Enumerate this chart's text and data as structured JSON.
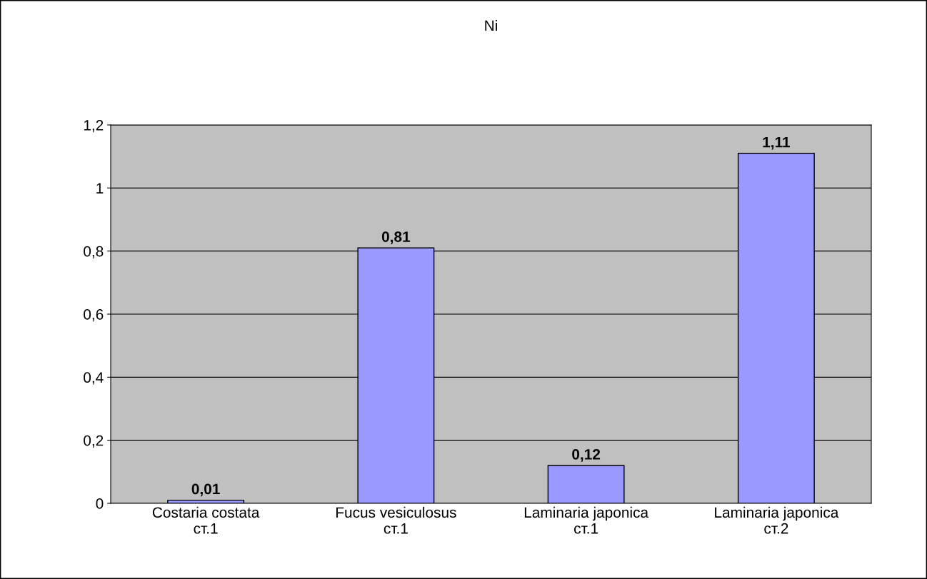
{
  "chart_data": {
    "type": "bar",
    "title": "Ni",
    "categories": [
      "Costaria costata\nст.1",
      "Fucus vesiculosus\nст.1",
      "Laminaria japonica\nст.1",
      "Laminaria japonica\nст.2"
    ],
    "values": [
      0.01,
      0.81,
      0.12,
      1.11
    ],
    "value_labels": [
      "0,01",
      "0,81",
      "0,12",
      "1,11"
    ],
    "color": "#9999ff",
    "ylim": [
      0,
      1.2
    ],
    "yticks": [
      0,
      {
        "value": 0.2,
        "label": "0,2"
      },
      {
        "value": 0.4,
        "label": "0,4"
      },
      {
        "value": 0.6,
        "label": "0,6"
      },
      {
        "value": 0.8,
        "label": "0,8"
      },
      1,
      {
        "value": 1.2,
        "label": "1,2"
      }
    ],
    "grid": "y",
    "legend": false
  }
}
